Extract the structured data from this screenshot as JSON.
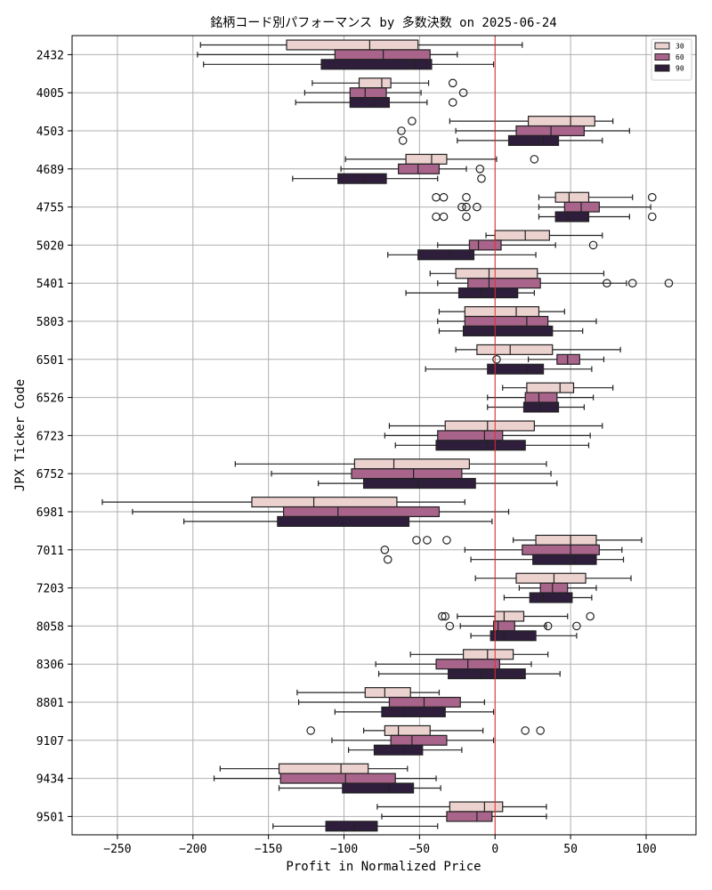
{
  "chart_data": {
    "type": "box",
    "orientation": "horizontal",
    "title": "銘柄コード別パフォーマンス by 多数決数 on 2025-06-24",
    "xlabel": "Profit in Normalized Price",
    "ylabel": "JPX Ticker Code",
    "xlim": [
      -280,
      133
    ],
    "xticks": [
      -250,
      -200,
      -150,
      -100,
      -50,
      0,
      50,
      100
    ],
    "xtick_labels": [
      "−250",
      "−200",
      "−150",
      "−100",
      "−50",
      "0",
      "50",
      "100"
    ],
    "grid": true,
    "reference_line": {
      "x": 0,
      "color": "#e03030"
    },
    "legend": {
      "placement": "top-right",
      "entries": [
        "30",
        "60",
        "90"
      ]
    },
    "series_colors": {
      "30": "#ecd2cf",
      "60": "#a8648a",
      "90": "#2e1e3b"
    },
    "categories": [
      "2432",
      "4005",
      "4503",
      "4689",
      "4755",
      "5020",
      "5401",
      "5803",
      "6501",
      "6526",
      "6723",
      "6752",
      "6981",
      "7011",
      "7203",
      "8058",
      "8306",
      "8801",
      "9107",
      "9434",
      "9501"
    ],
    "series": [
      {
        "name": "30",
        "boxes": [
          {
            "min": -195,
            "q1": -138,
            "median": -83,
            "q3": -51,
            "max": 18,
            "outliers": []
          },
          {
            "min": -121,
            "q1": -90,
            "median": -75,
            "q3": -69,
            "max": -44,
            "outliers": [
              -28
            ]
          },
          {
            "min": -30,
            "q1": 22,
            "median": 50,
            "q3": 66,
            "max": 78,
            "outliers": [
              -55
            ]
          },
          {
            "min": -99,
            "q1": -59,
            "median": -42,
            "q3": -32,
            "max": 1,
            "outliers": [
              26
            ]
          },
          {
            "min": 29,
            "q1": 40,
            "median": 49,
            "q3": 62,
            "max": 91,
            "outliers": [
              -39,
              -34,
              -19,
              104
            ]
          },
          {
            "min": -6,
            "q1": 0,
            "median": 20,
            "q3": 36,
            "max": 71,
            "outliers": []
          },
          {
            "min": -43,
            "q1": -26,
            "median": -4,
            "q3": 28,
            "max": 72,
            "outliers": []
          },
          {
            "min": -37,
            "q1": -20,
            "median": 14,
            "q3": 29,
            "max": 46,
            "outliers": []
          },
          {
            "min": -26,
            "q1": -12,
            "median": 10,
            "q3": 38,
            "max": 83,
            "outliers": []
          },
          {
            "min": 5,
            "q1": 21,
            "median": 43,
            "q3": 52,
            "max": 78,
            "outliers": []
          },
          {
            "min": -70,
            "q1": -33,
            "median": -5,
            "q3": 26,
            "max": 71,
            "outliers": []
          },
          {
            "min": -172,
            "q1": -93,
            "median": -67,
            "q3": -17,
            "max": 34,
            "outliers": []
          },
          {
            "min": -260,
            "q1": -161,
            "median": -120,
            "q3": -65,
            "max": -20,
            "outliers": []
          },
          {
            "min": 12,
            "q1": 27,
            "median": 50,
            "q3": 67,
            "max": 97,
            "outliers": [
              -52,
              -45,
              -32
            ]
          },
          {
            "min": -13,
            "q1": 14,
            "median": 39,
            "q3": 60,
            "max": 90,
            "outliers": []
          },
          {
            "min": -25,
            "q1": 0,
            "median": 6,
            "q3": 19,
            "max": 48,
            "outliers": [
              -35,
              -33,
              63
            ]
          },
          {
            "min": -56,
            "q1": -21,
            "median": -5,
            "q3": 12,
            "max": 35,
            "outliers": []
          },
          {
            "min": -131,
            "q1": -86,
            "median": -73,
            "q3": -56,
            "max": -37,
            "outliers": []
          },
          {
            "min": -87,
            "q1": -73,
            "median": -64,
            "q3": -43,
            "max": -8,
            "outliers": [
              -122,
              20,
              30
            ]
          },
          {
            "min": -182,
            "q1": -143,
            "median": -102,
            "q3": -84,
            "max": -58,
            "outliers": []
          },
          {
            "min": -78,
            "q1": -30,
            "median": -7,
            "q3": 5,
            "max": 34,
            "outliers": []
          }
        ]
      },
      {
        "name": "60",
        "boxes": [
          {
            "min": -197,
            "q1": -106,
            "median": -74,
            "q3": -43,
            "max": -25,
            "outliers": []
          },
          {
            "min": -126,
            "q1": -96,
            "median": -86,
            "q3": -72,
            "max": -49,
            "outliers": [
              -21
            ]
          },
          {
            "min": -26,
            "q1": 14,
            "median": 37,
            "q3": 59,
            "max": 89,
            "outliers": [
              -62
            ]
          },
          {
            "min": -102,
            "q1": -64,
            "median": -51,
            "q3": -37,
            "max": -19,
            "outliers": [
              -10
            ]
          },
          {
            "min": 29,
            "q1": 46,
            "median": 57,
            "q3": 69,
            "max": 103,
            "outliers": [
              -22,
              -19,
              -12
            ]
          },
          {
            "min": -38,
            "q1": -17,
            "median": -11,
            "q3": 4,
            "max": 40,
            "outliers": [
              65
            ]
          },
          {
            "min": -38,
            "q1": -18,
            "median": -4,
            "q3": 30,
            "max": 87,
            "outliers": [
              74,
              91,
              115
            ]
          },
          {
            "min": -38,
            "q1": -20,
            "median": 21,
            "q3": 35,
            "max": 67,
            "outliers": []
          },
          {
            "min": 22,
            "q1": 41,
            "median": 48,
            "q3": 56,
            "max": 72,
            "outliers": [
              1
            ]
          },
          {
            "min": -5,
            "q1": 20,
            "median": 29,
            "q3": 41,
            "max": 65,
            "outliers": []
          },
          {
            "min": -73,
            "q1": -38,
            "median": -7,
            "q3": 5,
            "max": 63,
            "outliers": []
          },
          {
            "min": -148,
            "q1": -95,
            "median": -54,
            "q3": -22,
            "max": 37,
            "outliers": []
          },
          {
            "min": -240,
            "q1": -140,
            "median": -104,
            "q3": -37,
            "max": 9,
            "outliers": []
          },
          {
            "min": -20,
            "q1": 18,
            "median": 50,
            "q3": 69,
            "max": 84,
            "outliers": [
              -73
            ]
          },
          {
            "min": 16,
            "q1": 30,
            "median": 38,
            "q3": 48,
            "max": 67,
            "outliers": []
          },
          {
            "min": -23,
            "q1": -1,
            "median": 2,
            "q3": 13,
            "max": 34,
            "outliers": [
              -30,
              35,
              54
            ]
          },
          {
            "min": -79,
            "q1": -39,
            "median": -18,
            "q3": 3,
            "max": 24,
            "outliers": []
          },
          {
            "min": -130,
            "q1": -70,
            "median": -47,
            "q3": -23,
            "max": -7,
            "outliers": []
          },
          {
            "min": -108,
            "q1": -69,
            "median": -55,
            "q3": -32,
            "max": -1,
            "outliers": []
          },
          {
            "min": -186,
            "q1": -142,
            "median": -99,
            "q3": -66,
            "max": -39,
            "outliers": []
          },
          {
            "min": -75,
            "q1": -32,
            "median": -12,
            "q3": -2,
            "max": 34,
            "outliers": []
          }
        ]
      },
      {
        "name": "90",
        "boxes": [
          {
            "min": -193,
            "q1": -115,
            "median": -53,
            "q3": -42,
            "max": -1,
            "outliers": []
          },
          {
            "min": -132,
            "q1": -96,
            "median": -80,
            "q3": -70,
            "max": -45,
            "outliers": [
              -28
            ]
          },
          {
            "min": -25,
            "q1": 9,
            "median": 32,
            "q3": 42,
            "max": 71,
            "outliers": [
              -61
            ]
          },
          {
            "min": -134,
            "q1": -104,
            "median": -87,
            "q3": -72,
            "max": -38,
            "outliers": [
              -9
            ]
          },
          {
            "min": 29,
            "q1": 40,
            "median": 48,
            "q3": 62,
            "max": 89,
            "outliers": [
              -39,
              -34,
              -19,
              104
            ]
          },
          {
            "min": -71,
            "q1": -51,
            "median": -30,
            "q3": -14,
            "max": 27,
            "outliers": []
          },
          {
            "min": -59,
            "q1": -24,
            "median": -9,
            "q3": 15,
            "max": 26,
            "outliers": []
          },
          {
            "min": -37,
            "q1": -21,
            "median": 0,
            "q3": 38,
            "max": 58,
            "outliers": []
          },
          {
            "min": -46,
            "q1": -5,
            "median": 21,
            "q3": 32,
            "max": 64,
            "outliers": []
          },
          {
            "min": -5,
            "q1": 19,
            "median": 30,
            "q3": 42,
            "max": 59,
            "outliers": []
          },
          {
            "min": -66,
            "q1": -39,
            "median": -5,
            "q3": 20,
            "max": 62,
            "outliers": []
          },
          {
            "min": -117,
            "q1": -87,
            "median": -51,
            "q3": -13,
            "max": 41,
            "outliers": []
          },
          {
            "min": -206,
            "q1": -144,
            "median": -101,
            "q3": -57,
            "max": -2,
            "outliers": []
          },
          {
            "min": -16,
            "q1": 25,
            "median": 53,
            "q3": 67,
            "max": 85,
            "outliers": [
              -71
            ]
          },
          {
            "min": 6,
            "q1": 23,
            "median": 32,
            "q3": 51,
            "max": 64,
            "outliers": []
          },
          {
            "min": -16,
            "q1": -3,
            "median": 6,
            "q3": 27,
            "max": 54,
            "outliers": []
          },
          {
            "min": -77,
            "q1": -31,
            "median": -9,
            "q3": 20,
            "max": 43,
            "outliers": []
          },
          {
            "min": -106,
            "q1": -75,
            "median": -60,
            "q3": -33,
            "max": -1,
            "outliers": []
          },
          {
            "min": -97,
            "q1": -80,
            "median": -60,
            "q3": -48,
            "max": -22,
            "outliers": []
          },
          {
            "min": -143,
            "q1": -101,
            "median": -70,
            "q3": -54,
            "max": -36,
            "outliers": []
          },
          {
            "min": -147,
            "q1": -112,
            "median": -93,
            "q3": -78,
            "max": -38,
            "outliers": []
          }
        ]
      }
    ]
  }
}
